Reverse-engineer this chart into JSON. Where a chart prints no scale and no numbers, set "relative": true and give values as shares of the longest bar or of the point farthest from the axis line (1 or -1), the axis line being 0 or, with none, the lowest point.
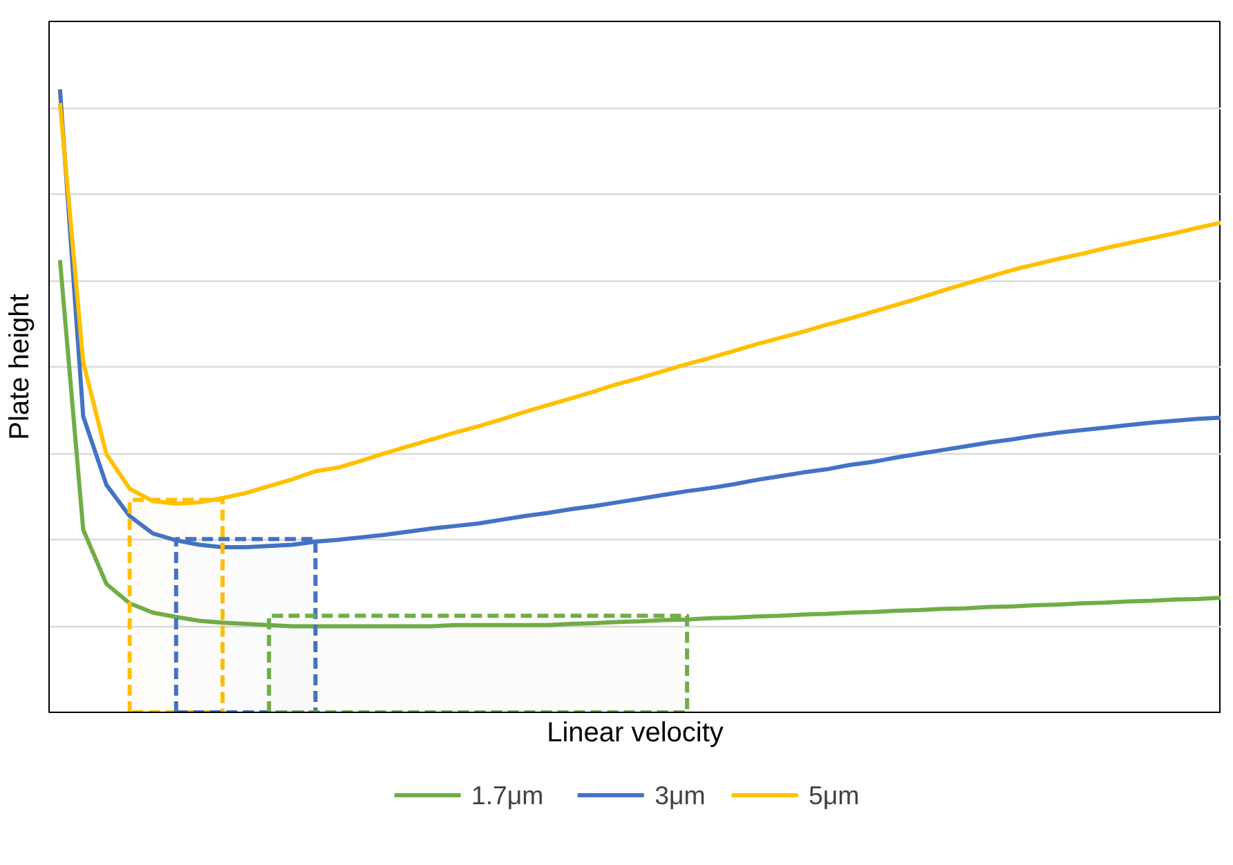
{
  "chart_data": {
    "type": "line",
    "relative": true,
    "xlabel": "Linear velocity",
    "ylabel": "Plate height",
    "grid": "y",
    "legend": "bottom",
    "categories": [
      null,
      null,
      null,
      null,
      null,
      null,
      null,
      null,
      null,
      null,
      null,
      null,
      null,
      null,
      null,
      null,
      null,
      null,
      null,
      null,
      null,
      null,
      null,
      null,
      null,
      null,
      null,
      null,
      null,
      null,
      null,
      null,
      null,
      null,
      null,
      null,
      null,
      null,
      null,
      null,
      null,
      null,
      null,
      null,
      null,
      null,
      null,
      null,
      null,
      null,
      null
    ],
    "series": [
      {
        "name": "1.7μm",
        "color": "#70ad47",
        "values": [
          0.726,
          0.293,
          0.206,
          0.175,
          0.16,
          0.153,
          0.147,
          0.144,
          0.142,
          0.14,
          0.138,
          0.138,
          0.138,
          0.138,
          0.138,
          0.138,
          0.138,
          0.14,
          0.14,
          0.14,
          0.14,
          0.14,
          0.142,
          0.143,
          0.145,
          0.146,
          0.148,
          0.149,
          0.151,
          0.152,
          0.154,
          0.155,
          0.157,
          0.158,
          0.16,
          0.161,
          0.163,
          0.164,
          0.166,
          0.167,
          0.169,
          0.17,
          0.172,
          0.173,
          0.175,
          0.176,
          0.178,
          0.179,
          0.181,
          0.182,
          0.184
        ]
      },
      {
        "name": "3μm",
        "color": "#4472c4",
        "values": [
          1.0,
          0.475,
          0.365,
          0.315,
          0.287,
          0.276,
          0.269,
          0.265,
          0.265,
          0.267,
          0.269,
          0.274,
          0.277,
          0.281,
          0.285,
          0.29,
          0.295,
          0.299,
          0.303,
          0.309,
          0.315,
          0.32,
          0.326,
          0.331,
          0.337,
          0.343,
          0.349,
          0.355,
          0.36,
          0.366,
          0.373,
          0.379,
          0.385,
          0.39,
          0.397,
          0.402,
          0.409,
          0.415,
          0.421,
          0.427,
          0.433,
          0.438,
          0.444,
          0.449,
          0.453,
          0.457,
          0.461,
          0.465,
          0.468,
          0.471,
          0.473
        ]
      },
      {
        "name": "5μm",
        "color": "#ffc000",
        "values": [
          0.978,
          0.562,
          0.414,
          0.359,
          0.339,
          0.335,
          0.337,
          0.344,
          0.352,
          0.363,
          0.374,
          0.387,
          0.393,
          0.404,
          0.416,
          0.427,
          0.438,
          0.449,
          0.459,
          0.47,
          0.482,
          0.493,
          0.504,
          0.515,
          0.527,
          0.537,
          0.548,
          0.559,
          0.569,
          0.58,
          0.591,
          0.601,
          0.611,
          0.622,
          0.632,
          0.643,
          0.654,
          0.665,
          0.677,
          0.688,
          0.699,
          0.71,
          0.719,
          0.728,
          0.736,
          0.745,
          0.753,
          0.761,
          0.769,
          0.778,
          0.786
        ]
      },
      {
        "type": "area",
        "color": "#ffc000",
        "line_style": "dashed",
        "values": [
          null,
          null,
          null,
          0.341,
          0.341,
          0.341,
          0.341,
          0.341,
          null,
          null,
          null,
          null,
          null,
          null,
          null,
          null,
          null,
          null,
          null,
          null,
          null,
          null,
          null,
          null,
          null,
          null,
          null,
          null,
          null,
          null,
          null,
          null,
          null,
          null,
          null,
          null,
          null,
          null,
          null,
          null,
          null,
          null,
          null,
          null,
          null,
          null,
          null,
          null,
          null,
          null,
          null
        ]
      },
      {
        "type": "area",
        "color": "#4472c4",
        "line_style": "dashed",
        "values": [
          null,
          null,
          null,
          null,
          null,
          0.278,
          0.278,
          0.278,
          0.278,
          0.278,
          0.278,
          0.278,
          null,
          null,
          null,
          null,
          null,
          null,
          null,
          null,
          null,
          null,
          null,
          null,
          null,
          null,
          null,
          null,
          null,
          null,
          null,
          null,
          null,
          null,
          null,
          null,
          null,
          null,
          null,
          null,
          null,
          null,
          null,
          null,
          null,
          null,
          null,
          null,
          null,
          null,
          null
        ]
      },
      {
        "type": "area",
        "color": "#70ad47",
        "line_style": "dashed",
        "values": [
          null,
          null,
          null,
          null,
          null,
          null,
          null,
          null,
          null,
          0.155,
          0.155,
          0.155,
          0.155,
          0.155,
          0.155,
          0.155,
          0.155,
          0.155,
          0.155,
          0.155,
          0.155,
          0.155,
          0.155,
          0.155,
          0.155,
          0.155,
          0.155,
          0.155,
          null,
          null,
          null,
          null,
          null,
          null,
          null,
          null,
          null,
          null,
          null,
          null,
          null,
          null,
          null,
          null,
          null,
          null,
          null,
          null,
          null,
          null,
          null
        ]
      }
    ]
  }
}
